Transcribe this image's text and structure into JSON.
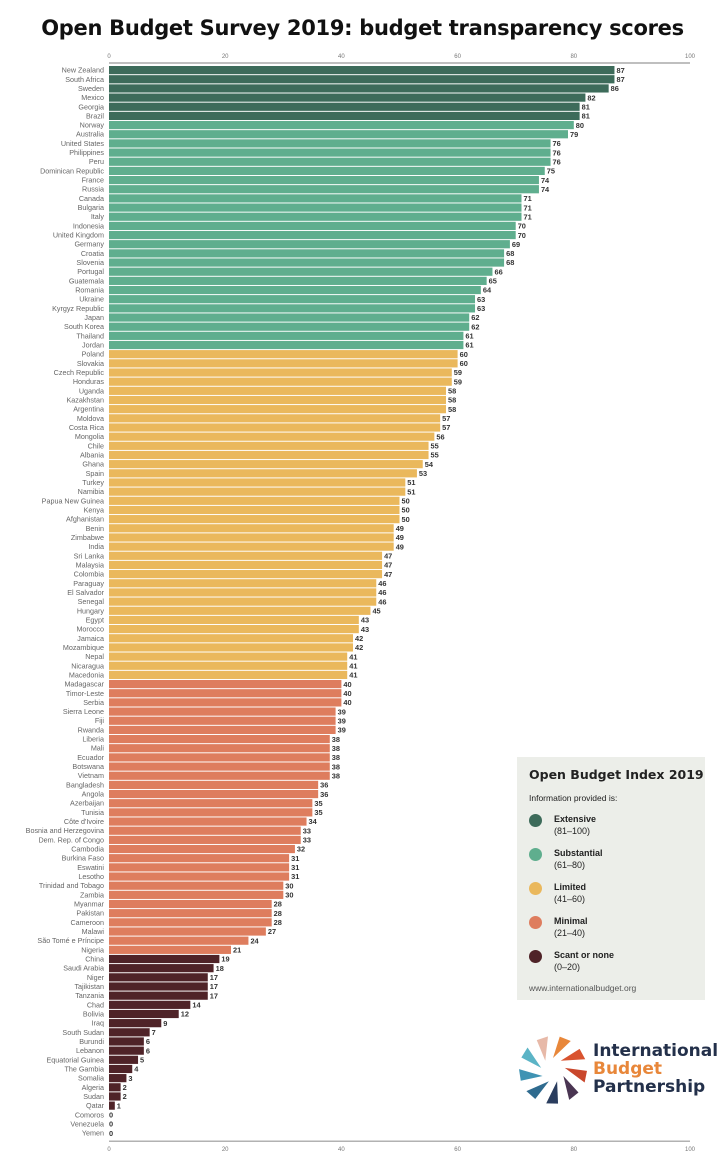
{
  "chart_data": {
    "type": "bar",
    "orientation": "horizontal",
    "title": "Open Budget Survey 2019: budget transparency scores",
    "xlim": [
      0,
      100
    ],
    "xticks": [
      0,
      20,
      40,
      60,
      80,
      100
    ],
    "xtick_labels": [
      "0",
      "20",
      "40",
      "60",
      "80",
      "100"
    ],
    "categories": [
      "New Zealand",
      "South Africa",
      "Sweden",
      "Mexico",
      "Georgia",
      "Brazil",
      "Norway",
      "Australia",
      "United States",
      "Philippines",
      "Peru",
      "Dominican Republic",
      "France",
      "Russia",
      "Canada",
      "Bulgaria",
      "Italy",
      "Indonesia",
      "United Kingdom",
      "Germany",
      "Croatia",
      "Slovenia",
      "Portugal",
      "Guatemala",
      "Romania",
      "Ukraine",
      "Kyrgyz Republic",
      "Japan",
      "South Korea",
      "Thailand",
      "Jordan",
      "Poland",
      "Slovakia",
      "Czech Republic",
      "Honduras",
      "Uganda",
      "Kazakhstan",
      "Argentina",
      "Moldova",
      "Costa Rica",
      "Mongolia",
      "Chile",
      "Albania",
      "Ghana",
      "Spain",
      "Turkey",
      "Namibia",
      "Papua New Guinea",
      "Kenya",
      "Afghanistan",
      "Benin",
      "Zimbabwe",
      "India",
      "Sri Lanka",
      "Malaysia",
      "Colombia",
      "Paraguay",
      "El Salvador",
      "Senegal",
      "Hungary",
      "Egypt",
      "Morocco",
      "Jamaica",
      "Mozambique",
      "Nepal",
      "Nicaragua",
      "Macedonia",
      "Madagascar",
      "Timor-Leste",
      "Serbia",
      "Sierra Leone",
      "Fiji",
      "Rwanda",
      "Liberia",
      "Mali",
      "Ecuador",
      "Botswana",
      "Vietnam",
      "Bangladesh",
      "Angola",
      "Azerbaijan",
      "Tunisia",
      "Côte d'Ivoire",
      "Bosnia and Herzegovina",
      "Dem. Rep. of Congo",
      "Cambodia",
      "Burkina Faso",
      "Eswatini",
      "Lesotho",
      "Trinidad and Tobago",
      "Zambia",
      "Myanmar",
      "Pakistan",
      "Cameroon",
      "Malawi",
      "São Tomé e Príncipe",
      "Nigeria",
      "China",
      "Saudi Arabia",
      "Niger",
      "Tajikistan",
      "Tanzania",
      "Chad",
      "Bolivia",
      "Iraq",
      "South Sudan",
      "Burundi",
      "Lebanon",
      "Equatorial Guinea",
      "The Gambia",
      "Somalia",
      "Algeria",
      "Sudan",
      "Qatar",
      "Comoros",
      "Venezuela",
      "Yemen"
    ],
    "values": [
      87,
      87,
      86,
      82,
      81,
      81,
      80,
      79,
      76,
      76,
      76,
      75,
      74,
      74,
      71,
      71,
      71,
      70,
      70,
      69,
      68,
      68,
      66,
      65,
      64,
      63,
      63,
      62,
      62,
      61,
      61,
      60,
      60,
      59,
      59,
      58,
      58,
      58,
      57,
      57,
      56,
      55,
      55,
      54,
      53,
      51,
      51,
      50,
      50,
      50,
      49,
      49,
      49,
      47,
      47,
      47,
      46,
      46,
      46,
      45,
      43,
      43,
      42,
      42,
      41,
      41,
      41,
      40,
      40,
      40,
      39,
      39,
      39,
      38,
      38,
      38,
      38,
      38,
      36,
      36,
      35,
      35,
      34,
      33,
      33,
      32,
      31,
      31,
      31,
      30,
      30,
      28,
      28,
      28,
      27,
      24,
      21,
      19,
      18,
      17,
      17,
      17,
      14,
      12,
      9,
      7,
      6,
      6,
      5,
      4,
      3,
      2,
      2,
      1,
      0,
      0,
      0
    ],
    "bands": [
      {
        "label": "Extensive",
        "range": "(81–100)",
        "min": 81,
        "color": "#3d6b5a"
      },
      {
        "label": "Substantial",
        "range": "(61–80)",
        "min": 61,
        "color": "#5fae8e"
      },
      {
        "label": "Limited",
        "range": "(41–60)",
        "min": 41,
        "color": "#eab85c"
      },
      {
        "label": "Minimal",
        "range": "(21–40)",
        "min": 21,
        "color": "#de7d5e"
      },
      {
        "label": "Scant or none",
        "range": "(0–20)",
        "min": 0,
        "color": "#4f2328"
      }
    ]
  },
  "legend": {
    "title": "Open Budget Index 2019",
    "subtitle": "Information provided is:",
    "url": "www.internationalbudget.org"
  },
  "logo": {
    "line1": "International",
    "line2": "Budget",
    "line3": "Partnership",
    "accent": "#e8873a",
    "dark": "#23304a"
  }
}
